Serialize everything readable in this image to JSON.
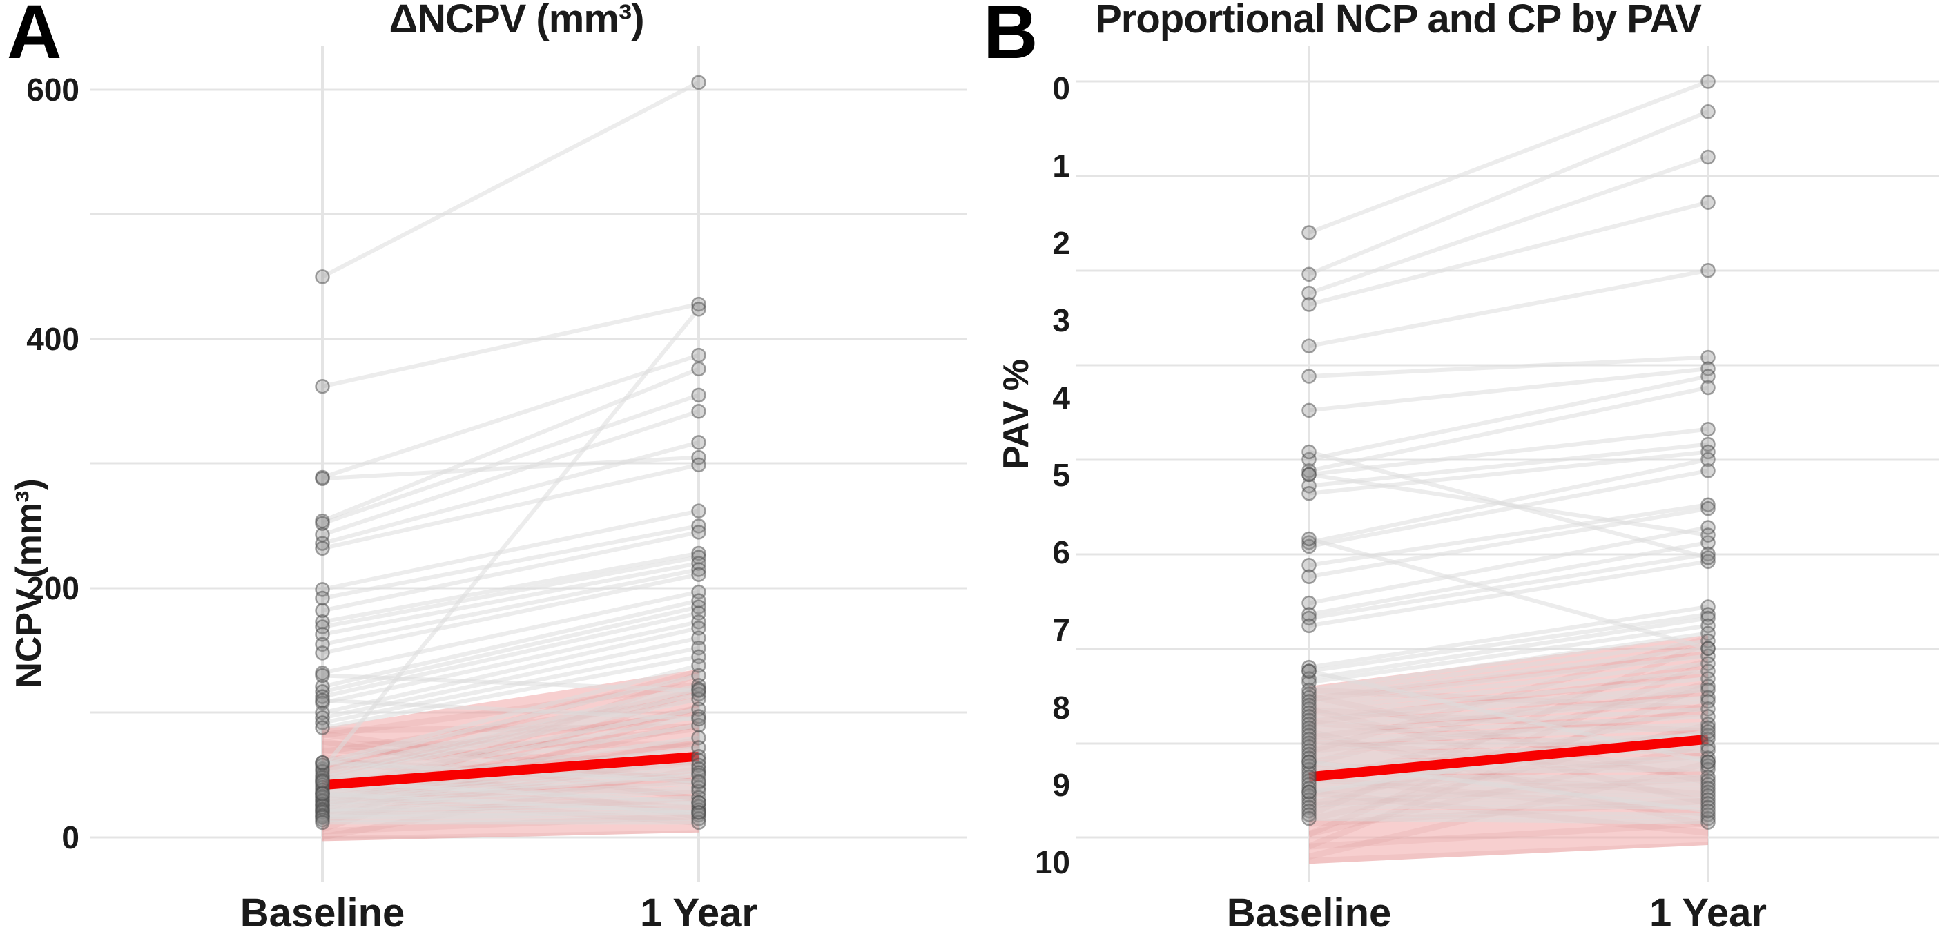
{
  "figure": {
    "background": "#FFFFFF",
    "panels": [
      {
        "corner_label": "A",
        "title": "ΔNCPV (mm³)",
        "ylabel": "NCPV (mm³)"
      },
      {
        "corner_label": "B",
        "title": "Proportional NCP and CP by PAV",
        "ylabel": "PAV %"
      }
    ],
    "colors": {
      "trend_red": "#F80000",
      "band_pink": "#F0A8A8",
      "point_gray": "#8C8C8C",
      "pair_line_gray": "#DCDCDC",
      "gridline_gray": "#E4E4E4",
      "text_black": "#1A1A1A"
    }
  },
  "chart_data": [
    {
      "type": "line",
      "panel": "A",
      "title": "ΔNCPV (mm³)",
      "ylabel": "NCPV (mm³)",
      "xlabel": "",
      "categories": [
        "Baseline",
        "1 Year"
      ],
      "y_tick_labels": [
        "0",
        "200",
        "400",
        "600"
      ],
      "ylim": [
        0,
        640
      ],
      "grid": "horizontal-major-minor",
      "legend": "none",
      "series_pairs_baseline_to_year1": [
        [
          450,
          606
        ],
        [
          362,
          428
        ],
        [
          55,
          424
        ],
        [
          289,
          387
        ],
        [
          288,
          305
        ],
        [
          254,
          376
        ],
        [
          252,
          355
        ],
        [
          243,
          342
        ],
        [
          236,
          317
        ],
        [
          232,
          299
        ],
        [
          199,
          262
        ],
        [
          192,
          250
        ],
        [
          182,
          245
        ],
        [
          173,
          228
        ],
        [
          169,
          225
        ],
        [
          163,
          220
        ],
        [
          155,
          215
        ],
        [
          148,
          211
        ],
        [
          132,
          197
        ],
        [
          121,
          190
        ],
        [
          117,
          185
        ],
        [
          113,
          180
        ],
        [
          108,
          173
        ],
        [
          100,
          168
        ],
        [
          96,
          160
        ],
        [
          92,
          152
        ],
        [
          88,
          145
        ],
        [
          60,
          138
        ],
        [
          58,
          130
        ],
        [
          53,
          122
        ],
        [
          50,
          119
        ],
        [
          48,
          115
        ],
        [
          46,
          111
        ],
        [
          44,
          103
        ],
        [
          42,
          97
        ],
        [
          40,
          90
        ],
        [
          38,
          80
        ],
        [
          36,
          72
        ],
        [
          35,
          65
        ],
        [
          33,
          62
        ],
        [
          32,
          58
        ],
        [
          30,
          55
        ],
        [
          29,
          52
        ],
        [
          27,
          50
        ],
        [
          26,
          44
        ],
        [
          25,
          40
        ],
        [
          23,
          37
        ],
        [
          22,
          32
        ],
        [
          21,
          28
        ],
        [
          20,
          25
        ],
        [
          18,
          22
        ],
        [
          17,
          20
        ],
        [
          16,
          18
        ],
        [
          14,
          15
        ],
        [
          12,
          12
        ],
        [
          130,
          118
        ],
        [
          110,
          95
        ],
        [
          60,
          45
        ],
        [
          45,
          28
        ],
        [
          35,
          20
        ]
      ],
      "trend_line": {
        "name": "mean-trend",
        "values": [
          42,
          65
        ],
        "color": "#F80000"
      },
      "confidence_band": {
        "baseline": [
          -3,
          88
        ],
        "year1": [
          4,
          135
        ],
        "color": "#F0A8A8"
      }
    },
    {
      "type": "line",
      "panel": "B",
      "title": "Proportional NCP and CP by PAV",
      "ylabel": "PAV %",
      "xlabel": "",
      "categories": [
        "Baseline",
        "1 Year"
      ],
      "y_tick_labels": [
        "10",
        "9",
        "8",
        "7",
        "6",
        "5",
        "4",
        "3",
        "2",
        "1",
        "0"
      ],
      "ylim": [
        0,
        10
      ],
      "grid": "horizontal",
      "legend": "none",
      "series_pairs_baseline_to_year1": [
        [
          8.0,
          10.0
        ],
        [
          7.45,
          9.6
        ],
        [
          7.2,
          9.0
        ],
        [
          7.05,
          8.4
        ],
        [
          6.5,
          7.5
        ],
        [
          6.1,
          6.35
        ],
        [
          5.65,
          6.2
        ],
        [
          5.0,
          6.1
        ],
        [
          4.85,
          5.95
        ],
        [
          4.8,
          5.4
        ],
        [
          4.65,
          5.2
        ],
        [
          4.55,
          5.1
        ],
        [
          3.9,
          5.0
        ],
        [
          3.85,
          4.85
        ],
        [
          3.6,
          4.4
        ],
        [
          3.45,
          4.35
        ],
        [
          3.1,
          4.1
        ],
        [
          2.95,
          3.9
        ],
        [
          2.9,
          3.75
        ],
        [
          2.8,
          3.65
        ],
        [
          2.25,
          3.05
        ],
        [
          2.2,
          2.95
        ],
        [
          2.1,
          2.9
        ],
        [
          2.05,
          2.8
        ],
        [
          1.95,
          2.7
        ],
        [
          1.9,
          2.6
        ],
        [
          1.85,
          2.5
        ],
        [
          1.8,
          2.4
        ],
        [
          1.75,
          2.3
        ],
        [
          1.7,
          2.2
        ],
        [
          1.65,
          2.1
        ],
        [
          1.6,
          2.0
        ],
        [
          1.55,
          1.95
        ],
        [
          1.5,
          1.85
        ],
        [
          1.45,
          1.8
        ],
        [
          1.4,
          1.7
        ],
        [
          1.35,
          1.6
        ],
        [
          1.3,
          1.5
        ],
        [
          1.25,
          1.45
        ],
        [
          1.2,
          1.35
        ],
        [
          1.15,
          1.3
        ],
        [
          1.1,
          1.2
        ],
        [
          1.05,
          1.15
        ],
        [
          1.0,
          1.05
        ],
        [
          0.95,
          1.0
        ],
        [
          0.9,
          0.95
        ],
        [
          0.85,
          0.9
        ],
        [
          0.8,
          0.8
        ],
        [
          0.75,
          0.75
        ],
        [
          0.7,
          0.7
        ],
        [
          0.65,
          0.65
        ],
        [
          0.6,
          0.6
        ],
        [
          0.55,
          0.55
        ],
        [
          0.5,
          0.5
        ],
        [
          0.45,
          0.45
        ],
        [
          0.4,
          0.4
        ],
        [
          0.35,
          0.3
        ],
        [
          0.3,
          0.25
        ],
        [
          0.25,
          0.2
        ],
        [
          5.1,
          3.7
        ],
        [
          3.95,
          2.5
        ],
        [
          2.2,
          1.0
        ],
        [
          4.8,
          4.0
        ],
        [
          1.0,
          0.35
        ],
        [
          0.6,
          1.4
        ]
      ],
      "trend_line": {
        "name": "mean-trend",
        "values": [
          0.8,
          1.3
        ],
        "color": "#F80000"
      },
      "confidence_band": {
        "baseline": [
          -0.35,
          2.0
        ],
        "year1": [
          -0.1,
          2.68
        ],
        "color": "#F0A8A8"
      }
    }
  ]
}
